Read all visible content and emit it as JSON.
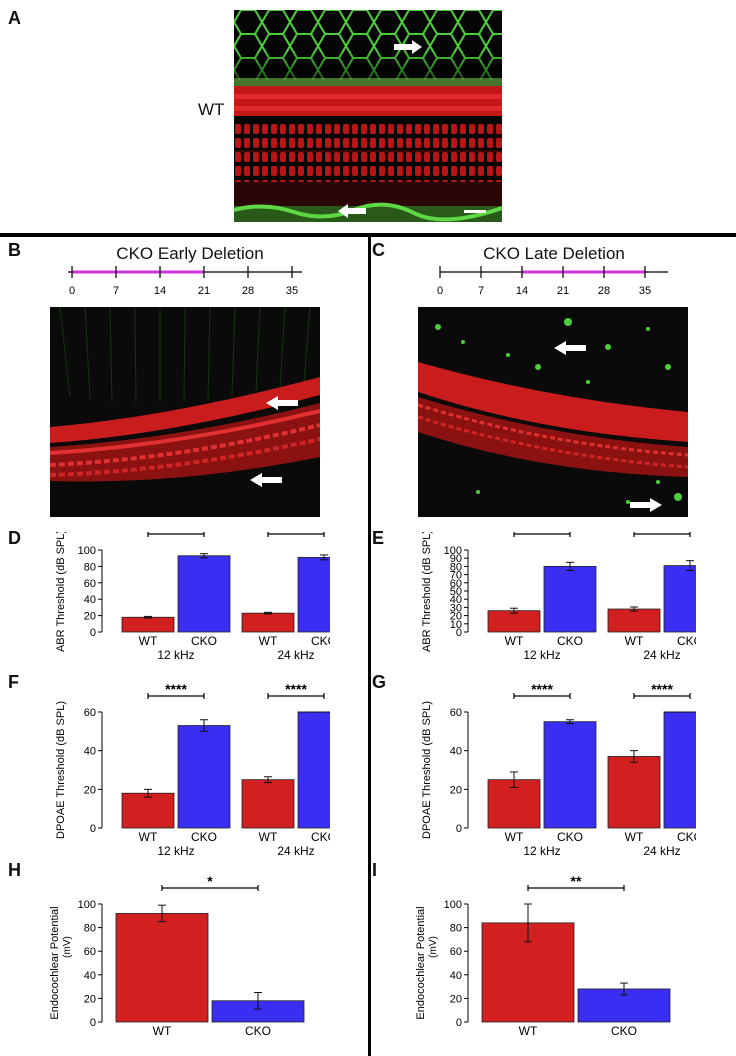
{
  "panels": {
    "A": "A",
    "B": "B",
    "C": "C",
    "D": "D",
    "E": "E",
    "F": "F",
    "G": "G",
    "H": "H",
    "I": "I"
  },
  "labels": {
    "wt": "WT"
  },
  "colors": {
    "wt": "#d21f1f",
    "cko": "#3a2ef2",
    "deletion": "#cc33dd"
  },
  "timelines": {
    "early": {
      "title": "CKO Early Deletion",
      "ticks": [
        "0",
        "7",
        "14",
        "21",
        "28",
        "35"
      ],
      "highlight": [
        "0",
        "21"
      ]
    },
    "late": {
      "title": "CKO Late Deletion",
      "ticks": [
        "0",
        "7",
        "14",
        "21",
        "28",
        "35"
      ],
      "highlight": [
        "14",
        "35"
      ]
    }
  },
  "chart_data": [
    {
      "panel": "D",
      "type": "bar",
      "ylabel": "ABR Threshold (dB SPL)",
      "ylim": [
        0,
        100
      ],
      "yticks": [
        "0",
        "20",
        "40",
        "60",
        "80",
        "100"
      ],
      "groups": [
        {
          "label": "12 kHz",
          "bars": [
            {
              "name": "WT",
              "value": 18,
              "err": 1
            },
            {
              "name": "CKO",
              "value": 93,
              "err": 2.5
            }
          ],
          "sig": "****"
        },
        {
          "label": "24 kHz",
          "bars": [
            {
              "name": "WT",
              "value": 23,
              "err": 1
            },
            {
              "name": "CKO",
              "value": 91,
              "err": 3
            }
          ],
          "sig": "****"
        }
      ]
    },
    {
      "panel": "E",
      "type": "bar",
      "ylabel": "ABR Threshold (dB SPL)",
      "ylim": [
        0,
        100
      ],
      "yticks": [
        "0",
        "10",
        "20",
        "30",
        "40",
        "50",
        "60",
        "70",
        "80",
        "90",
        "100"
      ],
      "groups": [
        {
          "label": "12 kHz",
          "bars": [
            {
              "name": "WT",
              "value": 26,
              "err": 3
            },
            {
              "name": "CKO",
              "value": 80,
              "err": 5
            }
          ],
          "sig": "****"
        },
        {
          "label": "24 kHz",
          "bars": [
            {
              "name": "WT",
              "value": 28,
              "err": 2.5
            },
            {
              "name": "CKO",
              "value": 81,
              "err": 6
            }
          ],
          "sig": "****"
        }
      ]
    },
    {
      "panel": "F",
      "type": "bar",
      "ylabel": "DPOAE Threshold (dB SPL)",
      "ylim": [
        0,
        60
      ],
      "yticks": [
        "0",
        "20",
        "40",
        "60"
      ],
      "groups": [
        {
          "label": "12 kHz",
          "bars": [
            {
              "name": "WT",
              "value": 18,
              "err": 2
            },
            {
              "name": "CKO",
              "value": 53,
              "err": 3
            }
          ],
          "sig": "****"
        },
        {
          "label": "24 kHz",
          "bars": [
            {
              "name": "WT",
              "value": 25,
              "err": 1.5
            },
            {
              "name": "CKO",
              "value": 60,
              "err": 0,
              "arrow": true
            }
          ],
          "sig": "****"
        }
      ]
    },
    {
      "panel": "G",
      "type": "bar",
      "ylabel": "DPOAE Threshold (dB SPL)",
      "ylim": [
        0,
        60
      ],
      "yticks": [
        "0",
        "20",
        "40",
        "60"
      ],
      "groups": [
        {
          "label": "12 kHz",
          "bars": [
            {
              "name": "WT",
              "value": 25,
              "err": 4
            },
            {
              "name": "CKO",
              "value": 55,
              "err": 1
            }
          ],
          "sig": "****"
        },
        {
          "label": "24 kHz",
          "bars": [
            {
              "name": "WT",
              "value": 37,
              "err": 3
            },
            {
              "name": "CKO",
              "value": 60,
              "err": 0,
              "arrow": true
            }
          ],
          "sig": "****"
        }
      ]
    },
    {
      "panel": "H",
      "type": "bar",
      "ylabel": "Endocochlear Potential",
      "ylabel2": "(mV)",
      "ylim": [
        0,
        100
      ],
      "yticks": [
        "0",
        "20",
        "40",
        "60",
        "80",
        "100"
      ],
      "groups": [
        {
          "label": "",
          "bars": [
            {
              "name": "WT",
              "value": 92,
              "err": 7
            },
            {
              "name": "CKO",
              "value": 18,
              "err": 7
            }
          ],
          "sig": "*"
        }
      ]
    },
    {
      "panel": "I",
      "type": "bar",
      "ylabel": "Endocochlear Potential",
      "ylabel2": "(mV)",
      "ylim": [
        0,
        100
      ],
      "yticks": [
        "0",
        "20",
        "40",
        "60",
        "80",
        "100"
      ],
      "groups": [
        {
          "label": "",
          "bars": [
            {
              "name": "WT",
              "value": 84,
              "err": 16
            },
            {
              "name": "CKO",
              "value": 28,
              "err": 5
            }
          ],
          "sig": "**"
        }
      ]
    }
  ]
}
